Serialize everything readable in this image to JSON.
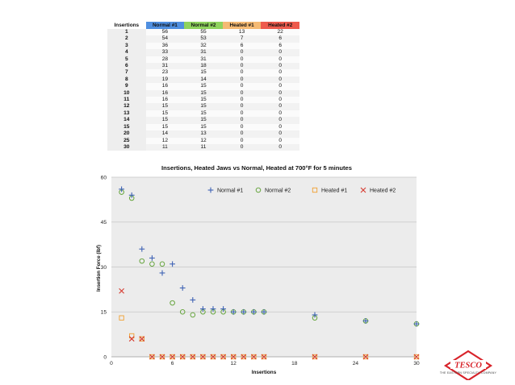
{
  "table": {
    "headers": [
      "Insertions",
      "Normal #1",
      "Normal #2",
      "Heated #1",
      "Heated #2"
    ],
    "header_colors": [
      "#ffffff",
      "#4f8fe0",
      "#8fd35d",
      "#f5ba73",
      "#ee5a4c"
    ],
    "rows": [
      [
        "1",
        "56",
        "55",
        "13",
        "22"
      ],
      [
        "2",
        "54",
        "53",
        "7",
        "6"
      ],
      [
        "3",
        "36",
        "32",
        "6",
        "6"
      ],
      [
        "4",
        "33",
        "31",
        "0",
        "0"
      ],
      [
        "5",
        "28",
        "31",
        "0",
        "0"
      ],
      [
        "6",
        "31",
        "18",
        "0",
        "0"
      ],
      [
        "7",
        "23",
        "15",
        "0",
        "0"
      ],
      [
        "8",
        "19",
        "14",
        "0",
        "0"
      ],
      [
        "9",
        "16",
        "15",
        "0",
        "0"
      ],
      [
        "10",
        "16",
        "15",
        "0",
        "0"
      ],
      [
        "11",
        "16",
        "15",
        "0",
        "0"
      ],
      [
        "12",
        "15",
        "15",
        "0",
        "0"
      ],
      [
        "13",
        "15",
        "15",
        "0",
        "0"
      ],
      [
        "14",
        "15",
        "15",
        "0",
        "0"
      ],
      [
        "15",
        "15",
        "15",
        "0",
        "0"
      ],
      [
        "20",
        "14",
        "13",
        "0",
        "0"
      ],
      [
        "25",
        "12",
        "12",
        "0",
        "0"
      ],
      [
        "30",
        "11",
        "11",
        "0",
        "0"
      ]
    ]
  },
  "chart_data": {
    "type": "scatter",
    "title": "Insertions, Heated Jaws vs Normal, Heated at 700°F for 5 minutes",
    "xlabel": "Insertions",
    "ylabel": "Insertion Force (lbf)",
    "xlim": [
      0,
      30
    ],
    "ylim": [
      0,
      60
    ],
    "xticks": [
      0,
      6,
      12,
      18,
      24,
      30
    ],
    "yticks": [
      0,
      15,
      30,
      45,
      60
    ],
    "grid": true,
    "legend_position": "top-right",
    "x": [
      1,
      2,
      3,
      4,
      5,
      6,
      7,
      8,
      9,
      10,
      11,
      12,
      13,
      14,
      15,
      20,
      25,
      30
    ],
    "series": [
      {
        "name": "Normal #1",
        "marker": "plus",
        "color": "#3f63b5",
        "values": [
          56,
          54,
          36,
          33,
          28,
          31,
          23,
          19,
          16,
          16,
          16,
          15,
          15,
          15,
          15,
          14,
          12,
          11
        ]
      },
      {
        "name": "Normal #2",
        "marker": "circle",
        "color": "#5a9e2e",
        "values": [
          55,
          53,
          32,
          31,
          31,
          18,
          15,
          14,
          15,
          15,
          15,
          15,
          15,
          15,
          15,
          13,
          12,
          11
        ]
      },
      {
        "name": "Heated #1",
        "marker": "square",
        "color": "#f0a030",
        "values": [
          13,
          7,
          6,
          0,
          0,
          0,
          0,
          0,
          0,
          0,
          0,
          0,
          0,
          0,
          0,
          0,
          0,
          0
        ]
      },
      {
        "name": "Heated #2",
        "marker": "x",
        "color": "#d63b30",
        "values": [
          22,
          6,
          6,
          0,
          0,
          0,
          0,
          0,
          0,
          0,
          0,
          0,
          0,
          0,
          0,
          0,
          0,
          0
        ]
      }
    ]
  },
  "logo": {
    "text": "TESCO",
    "subtext": "THE EASTERN SPECIALTY COMPANY",
    "color": "#d8232a"
  }
}
